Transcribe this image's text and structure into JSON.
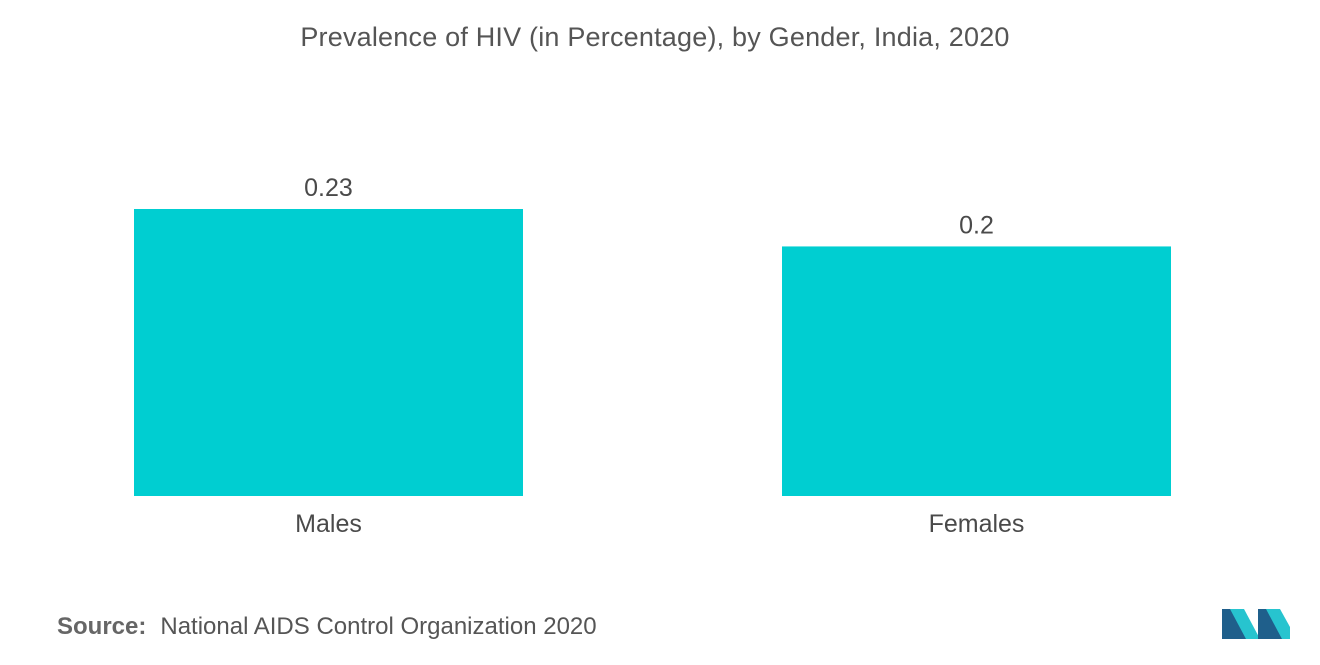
{
  "chart_data": {
    "type": "bar",
    "title": "Prevalence of HIV (in Percentage), by Gender, India, 2020",
    "categories": [
      "Males",
      "Females"
    ],
    "values": [
      0.23,
      0.2
    ],
    "value_labels": [
      "0.23",
      "0.2"
    ],
    "xlabel": "",
    "ylabel": "",
    "ylim": [
      0,
      0.23
    ],
    "grid": false,
    "legend": "none",
    "bar_color": "#00ced1"
  },
  "source": {
    "label": "Source:",
    "text": "National AIDS Control Organization 2020"
  },
  "logo": {
    "icon": "brand-logo-icon",
    "color_dark": "#1f5f8b",
    "color_light": "#27c4cf"
  }
}
